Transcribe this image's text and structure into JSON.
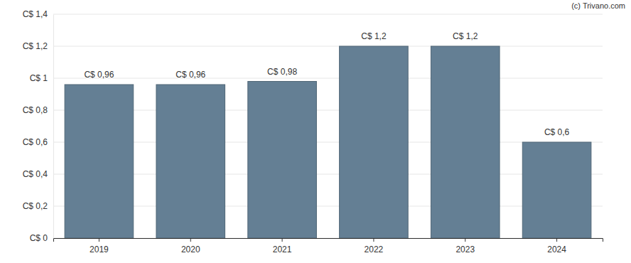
{
  "chart_data": {
    "type": "bar",
    "categories": [
      "2019",
      "2020",
      "2021",
      "2022",
      "2023",
      "2024"
    ],
    "values": [
      0.96,
      0.96,
      0.98,
      1.2,
      1.2,
      0.6
    ],
    "value_labels": [
      "C$ 0,96",
      "C$ 0,96",
      "C$ 0,98",
      "C$ 1,2",
      "C$ 1,2",
      "C$ 0,6"
    ],
    "color": "#647f94",
    "ylim": [
      0,
      1.4
    ],
    "yticks": [
      {
        "value": 0,
        "label": "C$ 0"
      },
      {
        "value": 0.2,
        "label": "C$ 0,2"
      },
      {
        "value": 0.4,
        "label": "C$ 0,4"
      },
      {
        "value": 0.6,
        "label": "C$ 0,6"
      },
      {
        "value": 0.8,
        "label": "C$ 0,8"
      },
      {
        "value": 1,
        "label": "C$ 1"
      },
      {
        "value": 1.2,
        "label": "C$ 1,2"
      },
      {
        "value": 1.4,
        "label": "C$ 1,4"
      }
    ],
    "grid": true,
    "data_labels": true,
    "annotations": [
      "(c) Trivano.com"
    ]
  }
}
